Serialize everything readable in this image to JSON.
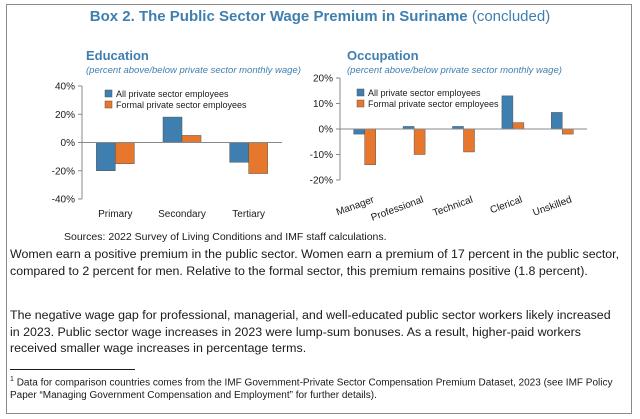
{
  "box": {
    "title_main": "Box 2. The Public Sector Wage Premium in Suriname",
    "title_suffix": "(concluded)"
  },
  "colors": {
    "series1": "#3f7fb0",
    "series2": "#e8772e",
    "title": "#3f7fb0"
  },
  "chart_data": [
    {
      "type": "bar",
      "title": "Education",
      "subtitle": "(percent above/below private sector monthly wage)",
      "categories": [
        "Primary",
        "Secondary",
        "Tertiary"
      ],
      "series": [
        {
          "name": "All private sector employees",
          "values": [
            -20,
            18,
            -14
          ]
        },
        {
          "name": "Formal private sector employees",
          "values": [
            -15,
            5,
            -22
          ]
        }
      ],
      "ylim": [
        -40,
        40
      ],
      "yticks": [
        40,
        20,
        0,
        -20,
        -40
      ],
      "ytick_labels": [
        "40%",
        "20%",
        "0%",
        "-20%",
        "-40%"
      ],
      "legend": "top-right",
      "grid": false
    },
    {
      "type": "bar",
      "title": "Occupation",
      "subtitle": "(percent above/below private sector monthly wage)",
      "categories": [
        "Manager",
        "Professional",
        "Technical",
        "Clerical",
        "Unskilled"
      ],
      "series": [
        {
          "name": "All private sector employees",
          "values": [
            -2,
            1,
            1,
            13,
            6.5
          ]
        },
        {
          "name": "Formal private sector employees",
          "values": [
            -14,
            -10,
            -9,
            2.5,
            -2
          ]
        }
      ],
      "ylim": [
        -20,
        20
      ],
      "yticks": [
        20,
        10,
        0,
        -10,
        -20
      ],
      "ytick_labels": [
        "20%",
        "10%",
        "0%",
        "-10%",
        "-20%"
      ],
      "legend": "top-left",
      "grid": false
    }
  ],
  "sources": "Sources: 2022 Survey of Living Conditions and IMF staff calculations.",
  "paragraphs": [
    "Women earn a positive premium in the public sector. Women earn a premium of 17 percent in the public sector, compared to 2 percent for men. Relative to the formal sector, this premium remains positive (1.8 percent).",
    "The negative wage gap for professional, managerial, and well-educated public sector workers likely increased in 2023. Public sector wage increases in 2023 were lump-sum bonuses. As a result, higher-paid workers received smaller wage increases in percentage terms."
  ],
  "footnote": {
    "mark": "1",
    "text": "Data for comparison countries comes from the IMF Government-Private Sector Compensation Premium Dataset, 2023 (see IMF Policy Paper “Managing Government Compensation and Employment” for further details)."
  }
}
